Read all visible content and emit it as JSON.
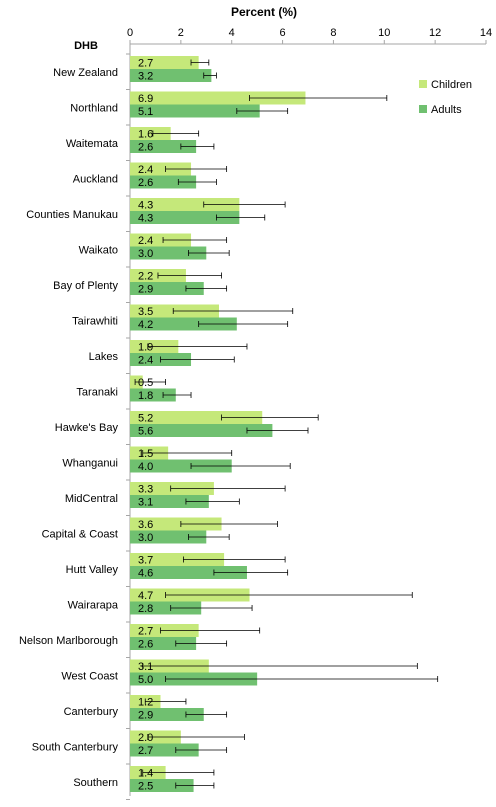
{
  "chart_data": {
    "type": "bar",
    "orientation": "horizontal",
    "xlabel": "Percent (%)",
    "category_header": "DHB",
    "xlim": [
      0,
      14
    ],
    "xticks": [
      0,
      2,
      4,
      6,
      8,
      10,
      12,
      14
    ],
    "axis_position": "top",
    "grid": false,
    "legend_position": "top-right",
    "categories": [
      "New Zealand",
      "Northland",
      "Waitemata",
      "Auckland",
      "Counties Manukau",
      "Waikato",
      "Bay of Plenty",
      "Tairawhiti",
      "Lakes",
      "Taranaki",
      "Hawke's Bay",
      "Whanganui",
      "MidCentral",
      "Capital & Coast",
      "Hutt Valley",
      "Wairarapa",
      "Nelson Marlborough",
      "West Coast",
      "Canterbury",
      "South Canterbury",
      "Southern"
    ],
    "series": [
      {
        "name": "Children",
        "color": "#c5e87a",
        "values": [
          2.7,
          6.9,
          1.6,
          2.4,
          4.3,
          2.4,
          2.2,
          3.5,
          1.9,
          0.5,
          5.2,
          1.5,
          3.3,
          3.6,
          3.7,
          4.7,
          2.7,
          3.1,
          1.2,
          2.0,
          1.4
        ],
        "labels": [
          "2.7",
          "6.9",
          "1.6",
          "2.4",
          "4.3",
          "2.4",
          "2.2",
          "3.5",
          "1.9",
          "0.5",
          "5.2",
          "1.5",
          "3.3",
          "3.6",
          "3.7",
          "4.7",
          "2.7",
          "3.1",
          "1.2",
          "2.0",
          "1.4"
        ],
        "ci_low": [
          2.4,
          4.7,
          0.9,
          1.4,
          2.9,
          1.3,
          1.1,
          1.7,
          0.7,
          0.2,
          3.6,
          0.5,
          1.6,
          2.0,
          2.1,
          1.4,
          1.2,
          0.5,
          0.6,
          0.7,
          0.5
        ],
        "ci_high": [
          3.1,
          10.1,
          2.7,
          3.8,
          6.1,
          3.8,
          3.6,
          6.4,
          4.6,
          1.4,
          7.4,
          4.0,
          6.1,
          5.8,
          6.1,
          11.1,
          5.1,
          11.3,
          2.2,
          4.5,
          3.3
        ]
      },
      {
        "name": "Adults",
        "color": "#70c070",
        "values": [
          3.2,
          5.1,
          2.6,
          2.6,
          4.3,
          3.0,
          2.9,
          4.2,
          2.4,
          1.8,
          5.6,
          4.0,
          3.1,
          3.0,
          4.6,
          2.8,
          2.6,
          5.0,
          2.9,
          2.7,
          2.5
        ],
        "labels": [
          "3.2",
          "5.1",
          "2.6",
          "2.6",
          "4.3",
          "3.0",
          "2.9",
          "4.2",
          "2.4",
          "1.8",
          "5.6",
          "4.0",
          "3.1",
          "3.0",
          "4.6",
          "2.8",
          "2.6",
          "5.0",
          "2.9",
          "2.7",
          "2.5"
        ],
        "ci_low": [
          2.9,
          4.2,
          2.0,
          1.9,
          3.4,
          2.3,
          2.2,
          2.7,
          1.2,
          1.3,
          4.6,
          2.4,
          2.2,
          2.3,
          3.3,
          1.6,
          1.8,
          1.4,
          2.2,
          1.8,
          1.8
        ],
        "ci_high": [
          3.4,
          6.2,
          3.3,
          3.4,
          5.3,
          3.9,
          3.8,
          6.2,
          4.1,
          2.4,
          7.0,
          6.3,
          4.3,
          3.9,
          6.2,
          4.8,
          3.8,
          12.1,
          3.8,
          3.8,
          3.3
        ]
      }
    ]
  }
}
